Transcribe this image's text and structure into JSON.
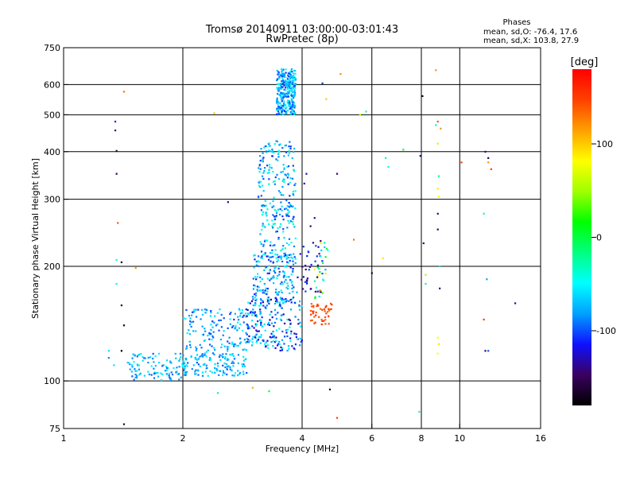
{
  "chart_data": {
    "type": "scatter",
    "title": "Tromsø 20140911 03:00:00-03:01:43",
    "subtitle": "RwPretec (8p)",
    "legend_block": {
      "heading": "Phases",
      "line1": "mean, sd,O: -76.4, 17.6",
      "line2": "mean, sd,X: 103.8, 27.9"
    },
    "xlabel": "Frequency [MHz]",
    "ylabel": "Stationary phase Virtual Height [km]",
    "x_scale": "log2",
    "y_scale": "log",
    "xlim": [
      1,
      16
    ],
    "ylim": [
      75,
      750
    ],
    "x_ticks": [
      {
        "value": 1,
        "label": "1"
      },
      {
        "value": 2,
        "label": "2"
      },
      {
        "value": 4,
        "label": "4"
      },
      {
        "value": 6,
        "label": "6"
      },
      {
        "value": 8,
        "label": "8"
      },
      {
        "value": 10,
        "label": "10"
      },
      {
        "value": 16,
        "label": "16"
      }
    ],
    "x_gridlines": [
      2,
      4,
      6,
      8,
      10
    ],
    "y_ticks": [
      {
        "value": 75,
        "label": "75"
      },
      {
        "value": 100,
        "label": "100"
      },
      {
        "value": 200,
        "label": "200"
      },
      {
        "value": 300,
        "label": "300"
      },
      {
        "value": 400,
        "label": "400"
      },
      {
        "value": 500,
        "label": "500"
      },
      {
        "value": 600,
        "label": "600"
      },
      {
        "value": 750,
        "label": "750"
      }
    ],
    "y_gridlines": [
      100,
      200,
      300,
      400,
      500,
      600
    ],
    "grid": true,
    "colorbar": {
      "label": "[deg]",
      "ticks": [
        {
          "value": 100,
          "label": "100"
        },
        {
          "value": 0,
          "label": "0"
        },
        {
          "value": -100,
          "label": "-100"
        }
      ],
      "range": [
        -180,
        180
      ],
      "colors": [
        "#000000",
        "#3a0060",
        "#1010ff",
        "#00a0ff",
        "#00ffff",
        "#00ff80",
        "#00ff00",
        "#a0ff00",
        "#ffff00",
        "#ffa000",
        "#ff4000",
        "#ff0000"
      ]
    },
    "bands": [
      {
        "x_from": 3.45,
        "x_to": 3.85,
        "y_from": 500,
        "y_to": 660,
        "phase_from": -110,
        "phase_to": -40,
        "count": 320
      },
      {
        "x_from": 3.1,
        "x_to": 3.85,
        "y_from": 210,
        "y_to": 430,
        "phase_from": -110,
        "phase_to": -30,
        "count": 260
      },
      {
        "x_from": 3.0,
        "x_to": 3.9,
        "y_from": 160,
        "y_to": 215,
        "phase_from": -120,
        "phase_to": -40,
        "count": 170
      },
      {
        "x_from": 2.0,
        "x_to": 3.2,
        "y_from": 125,
        "y_to": 155,
        "phase_from": -110,
        "phase_to": -50,
        "count": 150
      },
      {
        "x_from": 2.9,
        "x_to": 4.0,
        "y_from": 120,
        "y_to": 165,
        "phase_from": -140,
        "phase_to": -40,
        "count": 170
      },
      {
        "x_from": 1.45,
        "x_to": 2.05,
        "y_from": 100,
        "y_to": 118,
        "phase_from": -100,
        "phase_to": -50,
        "count": 110
      },
      {
        "x_from": 2.0,
        "x_to": 2.9,
        "y_from": 103,
        "y_to": 125,
        "phase_from": -100,
        "phase_to": -50,
        "count": 160
      },
      {
        "x_from": 3.95,
        "x_to": 4.5,
        "y_from": 170,
        "y_to": 240,
        "phase_from": -150,
        "phase_to": -100,
        "count": 40
      },
      {
        "x_from": 4.2,
        "x_to": 4.75,
        "y_from": 140,
        "y_to": 160,
        "phase_from": 130,
        "phase_to": 160,
        "count": 45
      },
      {
        "x_from": 4.3,
        "x_to": 4.7,
        "y_from": 165,
        "y_to": 235,
        "phase_from": -90,
        "phase_to": 120,
        "count": 25
      }
    ],
    "points": [
      {
        "x": 1.3,
        "y": 120,
        "phase": -60
      },
      {
        "x": 1.3,
        "y": 115,
        "phase": -90
      },
      {
        "x": 1.35,
        "y": 480,
        "phase": -110
      },
      {
        "x": 1.35,
        "y": 455,
        "phase": -140
      },
      {
        "x": 1.36,
        "y": 402,
        "phase": -160
      },
      {
        "x": 1.36,
        "y": 350,
        "phase": -150
      },
      {
        "x": 1.37,
        "y": 260,
        "phase": 140
      },
      {
        "x": 1.36,
        "y": 208,
        "phase": -40
      },
      {
        "x": 1.4,
        "y": 205,
        "phase": -170
      },
      {
        "x": 1.36,
        "y": 180,
        "phase": -50
      },
      {
        "x": 1.4,
        "y": 158,
        "phase": -160
      },
      {
        "x": 1.42,
        "y": 140,
        "phase": -170
      },
      {
        "x": 1.4,
        "y": 120,
        "phase": -180
      },
      {
        "x": 1.34,
        "y": 110,
        "phase": -60
      },
      {
        "x": 1.42,
        "y": 77,
        "phase": -160
      },
      {
        "x": 1.42,
        "y": 575,
        "phase": 130
      },
      {
        "x": 1.52,
        "y": 198,
        "phase": 120
      },
      {
        "x": 2.4,
        "y": 505,
        "phase": 100
      },
      {
        "x": 2.45,
        "y": 93,
        "phase": -20
      },
      {
        "x": 2.6,
        "y": 295,
        "phase": -140
      },
      {
        "x": 3.0,
        "y": 96,
        "phase": 110
      },
      {
        "x": 3.3,
        "y": 94,
        "phase": 0
      },
      {
        "x": 4.7,
        "y": 95,
        "phase": -170
      },
      {
        "x": 4.9,
        "y": 80,
        "phase": 150
      },
      {
        "x": 4.6,
        "y": 550,
        "phase": 100
      },
      {
        "x": 5.0,
        "y": 640,
        "phase": 120
      },
      {
        "x": 4.5,
        "y": 605,
        "phase": -110
      },
      {
        "x": 4.9,
        "y": 350,
        "phase": -150
      },
      {
        "x": 5.4,
        "y": 235,
        "phase": 130
      },
      {
        "x": 5.6,
        "y": 500,
        "phase": 50
      },
      {
        "x": 5.8,
        "y": 510,
        "phase": -30
      },
      {
        "x": 6.0,
        "y": 192,
        "phase": -160
      },
      {
        "x": 6.4,
        "y": 210,
        "phase": 90
      },
      {
        "x": 6.5,
        "y": 385,
        "phase": -20
      },
      {
        "x": 6.6,
        "y": 365,
        "phase": -40
      },
      {
        "x": 7.2,
        "y": 405,
        "phase": 0
      },
      {
        "x": 7.9,
        "y": 83,
        "phase": -30
      },
      {
        "x": 7.95,
        "y": 390,
        "phase": -140
      },
      {
        "x": 8.05,
        "y": 560,
        "phase": -170
      },
      {
        "x": 8.1,
        "y": 230,
        "phase": -150
      },
      {
        "x": 8.2,
        "y": 190,
        "phase": 50
      },
      {
        "x": 8.2,
        "y": 180,
        "phase": -20
      },
      {
        "x": 8.7,
        "y": 655,
        "phase": 120
      },
      {
        "x": 8.8,
        "y": 480,
        "phase": 140
      },
      {
        "x": 8.7,
        "y": 470,
        "phase": -40
      },
      {
        "x": 8.95,
        "y": 460,
        "phase": 120
      },
      {
        "x": 8.8,
        "y": 420,
        "phase": 60
      },
      {
        "x": 8.85,
        "y": 345,
        "phase": -20
      },
      {
        "x": 8.8,
        "y": 320,
        "phase": 90
      },
      {
        "x": 8.85,
        "y": 305,
        "phase": 80
      },
      {
        "x": 8.8,
        "y": 275,
        "phase": -140
      },
      {
        "x": 8.8,
        "y": 250,
        "phase": -150
      },
      {
        "x": 8.9,
        "y": 200,
        "phase": -60
      },
      {
        "x": 8.9,
        "y": 175,
        "phase": -140
      },
      {
        "x": 8.8,
        "y": 130,
        "phase": 80
      },
      {
        "x": 8.85,
        "y": 125,
        "phase": 90
      },
      {
        "x": 8.8,
        "y": 118,
        "phase": 80
      },
      {
        "x": 10.1,
        "y": 375,
        "phase": 150
      },
      {
        "x": 11.6,
        "y": 400,
        "phase": -140
      },
      {
        "x": 11.8,
        "y": 385,
        "phase": -160
      },
      {
        "x": 11.8,
        "y": 375,
        "phase": 120
      },
      {
        "x": 12.0,
        "y": 360,
        "phase": 150
      },
      {
        "x": 11.5,
        "y": 275,
        "phase": -30
      },
      {
        "x": 11.7,
        "y": 185,
        "phase": -80
      },
      {
        "x": 11.5,
        "y": 145,
        "phase": 150
      },
      {
        "x": 11.8,
        "y": 120,
        "phase": -100
      },
      {
        "x": 11.6,
        "y": 120,
        "phase": -150
      },
      {
        "x": 13.8,
        "y": 160,
        "phase": -130
      },
      {
        "x": 4.2,
        "y": 255,
        "phase": -150
      },
      {
        "x": 4.3,
        "y": 268,
        "phase": -140
      },
      {
        "x": 4.05,
        "y": 330,
        "phase": -120
      },
      {
        "x": 4.1,
        "y": 350,
        "phase": -130
      }
    ]
  }
}
